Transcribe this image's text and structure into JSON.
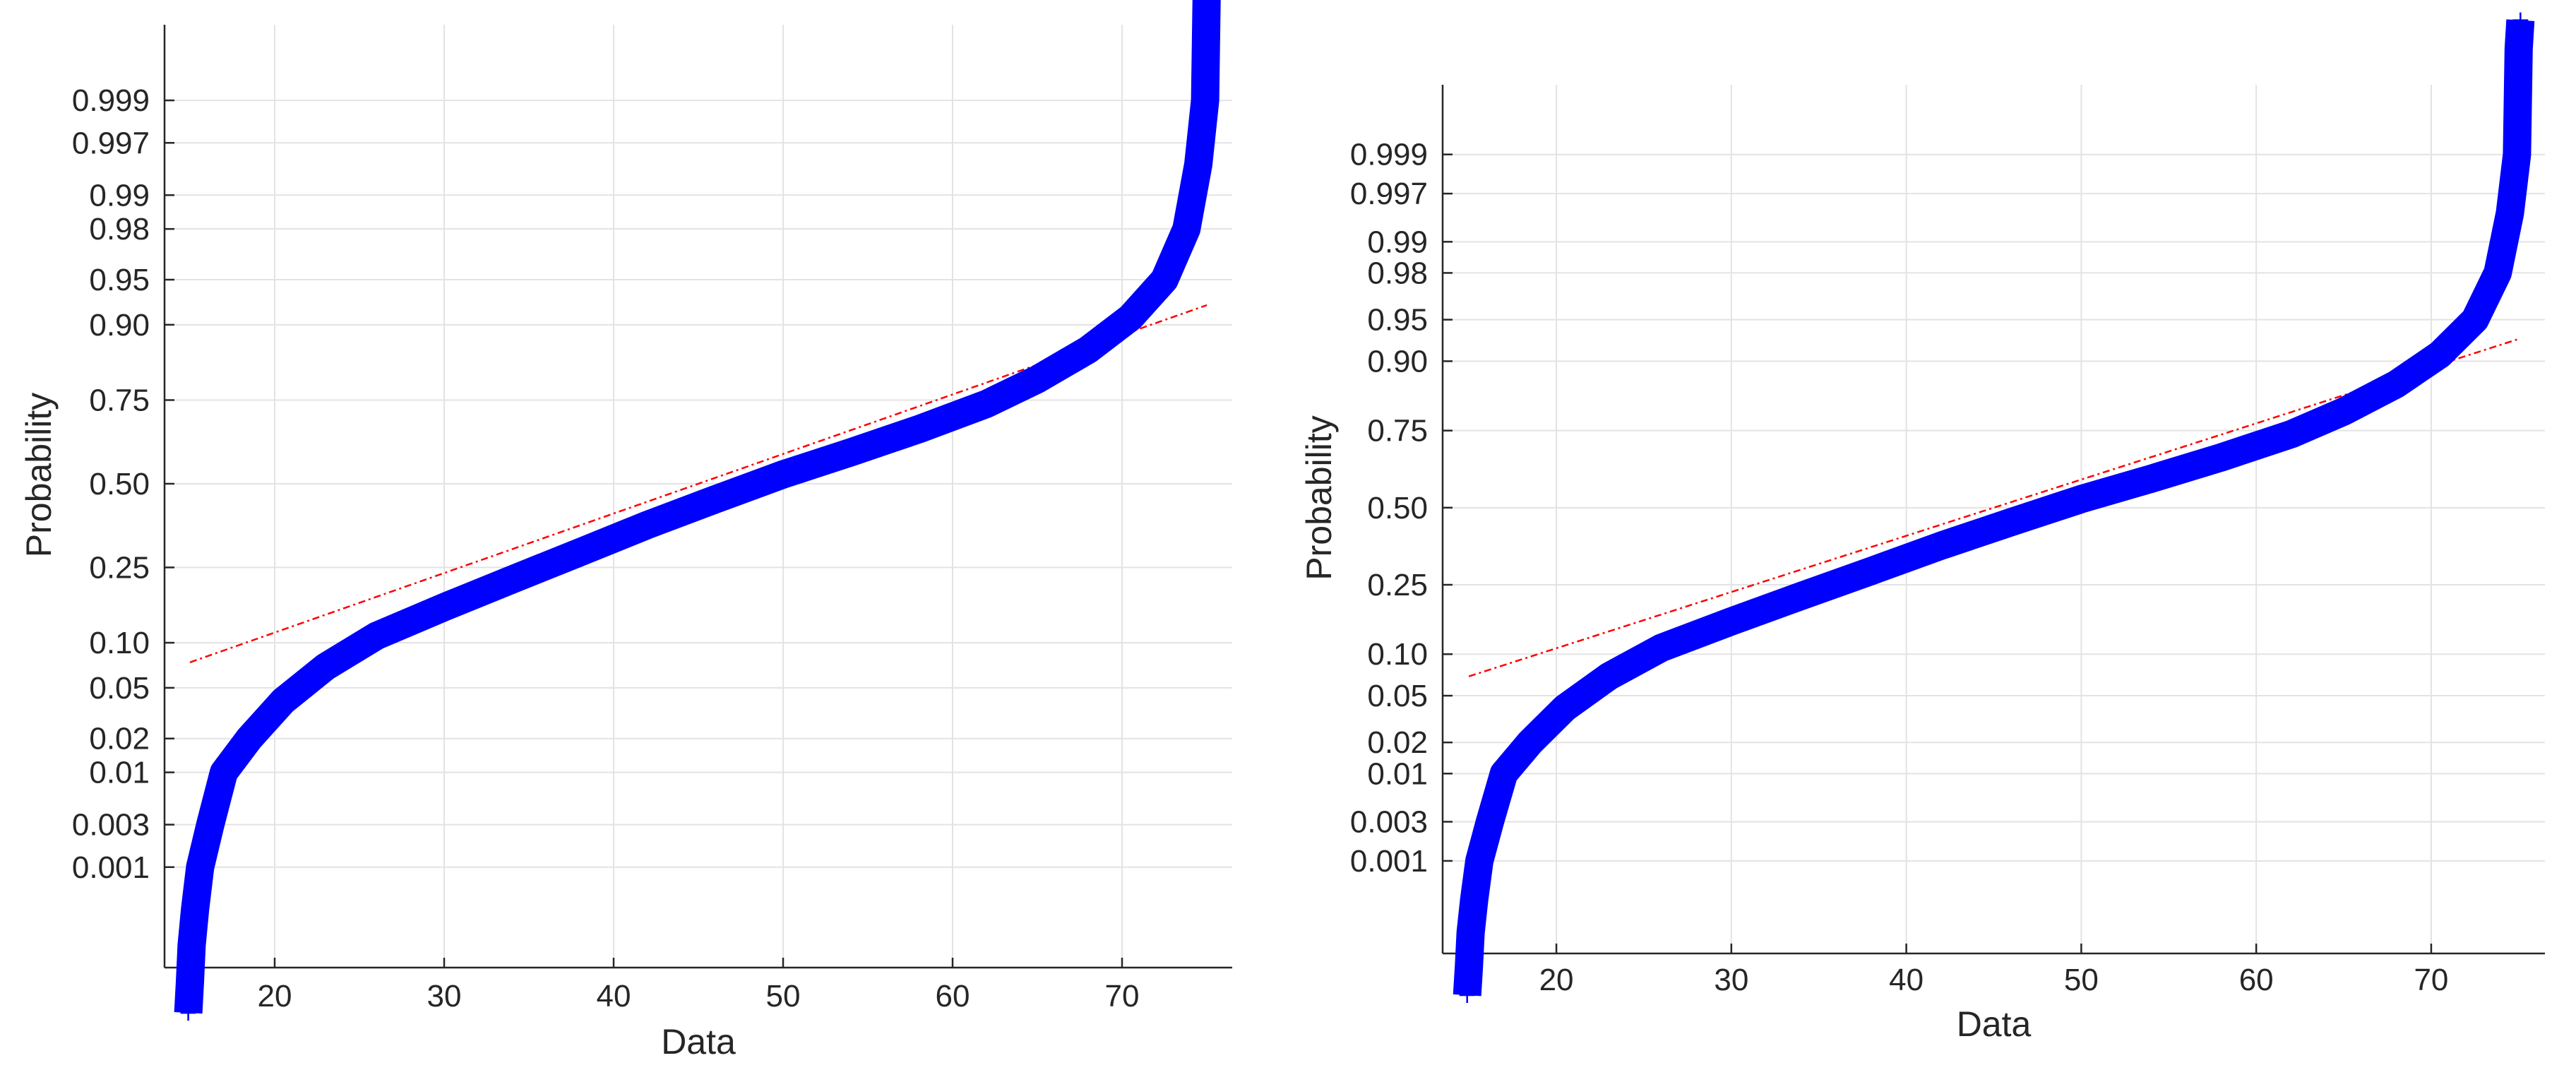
{
  "chart_data": [
    {
      "type": "scatter",
      "xlabel": "Data",
      "ylabel": "Probability",
      "xlim": [
        13.5,
        76.5
      ],
      "xticks": [
        20,
        30,
        40,
        50,
        60,
        70
      ],
      "yscale": "normal-probability",
      "yticks": [
        "0.001",
        "0.003",
        "0.01",
        "0.02",
        "0.05",
        "0.10",
        "0.25",
        "0.50",
        "0.75",
        "0.90",
        "0.95",
        "0.98",
        "0.99",
        "0.997",
        "0.999"
      ],
      "grid": true,
      "marker": "+",
      "marker_color": "#0000ff",
      "reference_line_color": "#ff0000",
      "series": [
        {
          "x": [
            14.9,
            15.0,
            15.1,
            15.3,
            15.6,
            16.2,
            17.0,
            18.5,
            20.5,
            23.0,
            26.0,
            30.0,
            34.0,
            38.0,
            42.0,
            46.0,
            50.0,
            54.0,
            58.0,
            62.0,
            65.0,
            68.0,
            70.5,
            72.5,
            73.8,
            74.5,
            74.9,
            75.0,
            75.1
          ],
          "y": [
            1e-05,
            3e-05,
            0.0001,
            0.0003,
            0.001,
            0.003,
            0.01,
            0.02,
            0.04,
            0.07,
            0.11,
            0.16,
            0.22,
            0.29,
            0.37,
            0.45,
            0.53,
            0.6,
            0.67,
            0.74,
            0.8,
            0.86,
            0.91,
            0.95,
            0.98,
            0.995,
            0.999,
            0.99997,
            0.99999
          ]
        }
      ],
      "reference_line": {
        "x": [
          15,
          75
        ],
        "y": [
          0.075,
          0.925
        ]
      }
    },
    {
      "type": "scatter",
      "xlabel": "Data",
      "ylabel": "Probability",
      "xlim": [
        13.5,
        76.5
      ],
      "xticks": [
        20,
        30,
        40,
        50,
        60,
        70
      ],
      "yscale": "normal-probability",
      "yticks": [
        "0.001",
        "0.003",
        "0.01",
        "0.02",
        "0.05",
        "0.10",
        "0.25",
        "0.50",
        "0.75",
        "0.90",
        "0.95",
        "0.98",
        "0.99",
        "0.997",
        "0.999"
      ],
      "grid": true,
      "marker": "+",
      "marker_color": "#0000ff",
      "reference_line_color": "#ff0000",
      "series": [
        {
          "x": [
            14.9,
            15.0,
            15.1,
            15.3,
            15.6,
            16.2,
            17.0,
            18.5,
            20.5,
            23.0,
            26.0,
            30.0,
            34.0,
            38.0,
            42.0,
            46.0,
            50.0,
            54.0,
            58.0,
            62.0,
            65.0,
            68.0,
            70.5,
            72.5,
            73.8,
            74.5,
            74.9,
            75.0,
            75.1
          ],
          "y": [
            1e-05,
            3e-05,
            0.0001,
            0.0003,
            0.001,
            0.003,
            0.01,
            0.02,
            0.04,
            0.07,
            0.11,
            0.16,
            0.22,
            0.29,
            0.37,
            0.45,
            0.53,
            0.6,
            0.67,
            0.74,
            0.8,
            0.86,
            0.91,
            0.95,
            0.98,
            0.995,
            0.999,
            0.99997,
            0.99999
          ]
        }
      ],
      "reference_line": {
        "x": [
          15,
          75
        ],
        "y": [
          0.07,
          0.93
        ]
      }
    }
  ]
}
